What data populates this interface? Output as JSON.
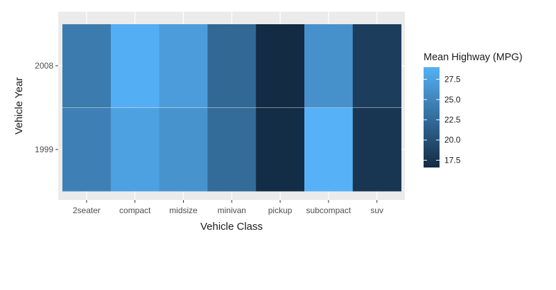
{
  "chart_data": {
    "type": "heatmap",
    "xlabel": "Vehicle Class",
    "ylabel": "Vehicle Year",
    "categories": [
      "2seater",
      "compact",
      "midsize",
      "minivan",
      "pickup",
      "subcompact",
      "suv"
    ],
    "y_categories": [
      "1999",
      "2008"
    ],
    "series": [
      {
        "y": "2008",
        "values": [
          24.0,
          28.7,
          27.1,
          22.2,
          16.6,
          26.0,
          18.3
        ]
      },
      {
        "y": "1999",
        "values": [
          24.5,
          27.5,
          26.2,
          22.5,
          16.8,
          29.0,
          17.6
        ]
      }
    ],
    "legend": {
      "title": "Mean Highway (MPG)",
      "ticks": [
        "17.5",
        "20.0",
        "22.5",
        "25.0",
        "27.5"
      ],
      "tick_values": [
        17.5,
        20.0,
        22.5,
        25.0,
        27.5
      ],
      "range": [
        16.6,
        29.0
      ],
      "placement": "right",
      "low_color": "#132b43",
      "high_color": "#56b1f7"
    },
    "panel_background": "#ebebeb",
    "grid": true
  }
}
